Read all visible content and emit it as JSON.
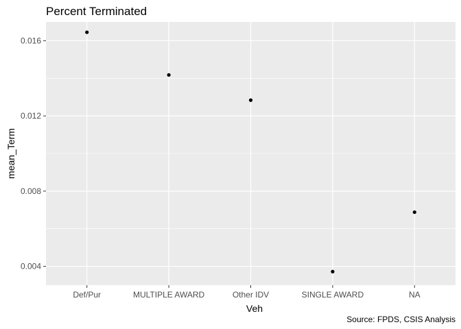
{
  "chart_data": {
    "type": "scatter",
    "title": "Percent Terminated",
    "xlabel": "Veh",
    "ylabel": "mean_Term",
    "caption": "Source: FPDS, CSIS Analysis",
    "categories": [
      "Def/Pur",
      "MULTIPLE AWARD",
      "Other IDV",
      "SINGLE AWARD",
      "NA"
    ],
    "values": [
      0.01645,
      0.01418,
      0.01284,
      0.00372,
      0.00688
    ],
    "yticks": [
      0.004,
      0.008,
      0.012,
      0.016
    ],
    "ytick_labels": [
      "0.004",
      "0.008",
      "0.012",
      "0.016"
    ],
    "ylim": [
      0.003,
      0.017
    ],
    "grid": true,
    "colors": {
      "panel": "#ebebeb",
      "grid_major": "#ffffff",
      "point": "#000000",
      "tick_text": "#4d4d4d",
      "tick_mark": "#333333"
    }
  }
}
